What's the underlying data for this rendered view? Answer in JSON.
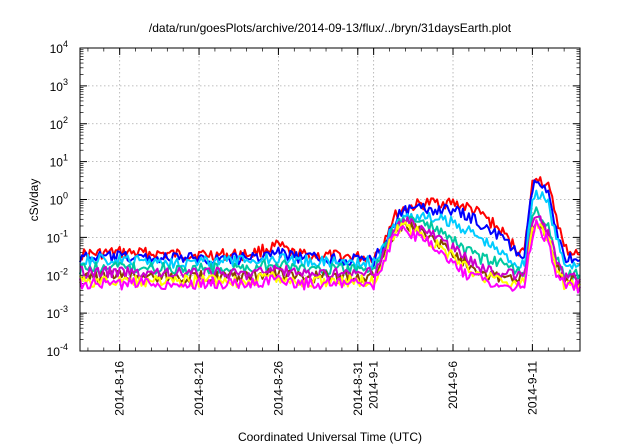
{
  "chart_data": {
    "type": "line",
    "title": "/data/run/goesPlots/archive/2014-09-13/flux/../bryn/31daysEarth.plot",
    "xlabel": "Coordinated Universal Time (UTC)",
    "ylabel": "cSv/day",
    "yscale": "log",
    "ylim": [
      0.0001,
      10000
    ],
    "xlim": [
      "2014-08-13T12:00",
      "2014-09-14T00:00"
    ],
    "grid": true,
    "y_ticks": [
      {
        "value": 0.0001,
        "base": "10",
        "exp": "-4"
      },
      {
        "value": 0.001,
        "base": "10",
        "exp": "-3"
      },
      {
        "value": 0.01,
        "base": "10",
        "exp": "-2"
      },
      {
        "value": 0.1,
        "base": "10",
        "exp": "-1"
      },
      {
        "value": 1,
        "base": "10",
        "exp": "0"
      },
      {
        "value": 10,
        "base": "10",
        "exp": "1"
      },
      {
        "value": 100,
        "base": "10",
        "exp": "2"
      },
      {
        "value": 1000,
        "base": "10",
        "exp": "3"
      },
      {
        "value": 10000,
        "base": "10",
        "exp": "4"
      }
    ],
    "x_ticks": [
      {
        "date": "2014-08-16",
        "label": "2014-8-16"
      },
      {
        "date": "2014-08-21",
        "label": "2014-8-21"
      },
      {
        "date": "2014-08-26",
        "label": "2014-8-26"
      },
      {
        "date": "2014-08-31",
        "label": "2014-8-31"
      },
      {
        "date": "2014-09-01",
        "label": "2014-9-1"
      },
      {
        "date": "2014-09-06",
        "label": "2014-9-6"
      },
      {
        "date": "2014-09-11",
        "label": "2014-9-11"
      }
    ],
    "series": [
      {
        "color": "#ff0000",
        "values": [
          [
            "2014-08-13T12:00",
            0.035
          ],
          [
            "2014-08-16T00:00",
            0.04
          ],
          [
            "2014-08-20T00:00",
            0.035
          ],
          [
            "2014-08-24T00:00",
            0.035
          ],
          [
            "2014-08-26T00:00",
            0.06
          ],
          [
            "2014-08-27T00:00",
            0.035
          ],
          [
            "2014-08-31T00:00",
            0.03
          ],
          [
            "2014-09-01T00:00",
            0.03
          ],
          [
            "2014-09-01T12:00",
            0.06
          ],
          [
            "2014-09-02T00:00",
            0.2
          ],
          [
            "2014-09-02T12:00",
            0.45
          ],
          [
            "2014-09-03T00:00",
            0.6
          ],
          [
            "2014-09-04T00:00",
            0.75
          ],
          [
            "2014-09-05T00:00",
            0.85
          ],
          [
            "2014-09-06T00:00",
            0.8
          ],
          [
            "2014-09-07T00:00",
            0.6
          ],
          [
            "2014-09-08T00:00",
            0.35
          ],
          [
            "2014-09-09T00:00",
            0.15
          ],
          [
            "2014-09-10T00:00",
            0.05
          ],
          [
            "2014-09-10T12:00",
            0.04
          ],
          [
            "2014-09-11T00:00",
            2.5
          ],
          [
            "2014-09-11T06:00",
            4.5
          ],
          [
            "2014-09-12T00:00",
            2.0
          ],
          [
            "2014-09-12T12:00",
            0.4
          ],
          [
            "2014-09-13T00:00",
            0.05
          ],
          [
            "2014-09-14T00:00",
            0.035
          ]
        ]
      },
      {
        "color": "#0000ff",
        "values": [
          [
            "2014-08-13T12:00",
            0.03
          ],
          [
            "2014-08-16T00:00",
            0.03
          ],
          [
            "2014-08-20T00:00",
            0.028
          ],
          [
            "2014-08-24T00:00",
            0.028
          ],
          [
            "2014-08-26T00:00",
            0.04
          ],
          [
            "2014-08-27T00:00",
            0.03
          ],
          [
            "2014-08-31T00:00",
            0.025
          ],
          [
            "2014-09-01T00:00",
            0.025
          ],
          [
            "2014-09-01T12:00",
            0.05
          ],
          [
            "2014-09-02T00:00",
            0.15
          ],
          [
            "2014-09-02T12:00",
            0.35
          ],
          [
            "2014-09-03T00:00",
            0.5
          ],
          [
            "2014-09-04T00:00",
            0.55
          ],
          [
            "2014-09-05T00:00",
            0.55
          ],
          [
            "2014-09-06T00:00",
            0.5
          ],
          [
            "2014-09-07T00:00",
            0.35
          ],
          [
            "2014-09-08T00:00",
            0.2
          ],
          [
            "2014-09-09T00:00",
            0.1
          ],
          [
            "2014-09-10T00:00",
            0.04
          ],
          [
            "2014-09-10T12:00",
            0.03
          ],
          [
            "2014-09-11T00:00",
            2.0
          ],
          [
            "2014-09-11T06:00",
            3.0
          ],
          [
            "2014-09-12T00:00",
            1.3
          ],
          [
            "2014-09-12T12:00",
            0.2
          ],
          [
            "2014-09-13T00:00",
            0.03
          ],
          [
            "2014-09-14T00:00",
            0.025
          ]
        ]
      },
      {
        "color": "#00ccff",
        "values": [
          [
            "2014-08-13T12:00",
            0.025
          ],
          [
            "2014-08-16T00:00",
            0.025
          ],
          [
            "2014-08-20T00:00",
            0.022
          ],
          [
            "2014-08-24T00:00",
            0.024
          ],
          [
            "2014-08-26T00:00",
            0.03
          ],
          [
            "2014-08-27T00:00",
            0.024
          ],
          [
            "2014-08-31T00:00",
            0.022
          ],
          [
            "2014-09-01T00:00",
            0.022
          ],
          [
            "2014-09-01T12:00",
            0.04
          ],
          [
            "2014-09-02T00:00",
            0.12
          ],
          [
            "2014-09-02T12:00",
            0.25
          ],
          [
            "2014-09-03T00:00",
            0.35
          ],
          [
            "2014-09-04T00:00",
            0.35
          ],
          [
            "2014-09-05T00:00",
            0.3
          ],
          [
            "2014-09-06T00:00",
            0.25
          ],
          [
            "2014-09-07T00:00",
            0.15
          ],
          [
            "2014-09-08T00:00",
            0.08
          ],
          [
            "2014-09-09T00:00",
            0.04
          ],
          [
            "2014-09-10T00:00",
            0.02
          ],
          [
            "2014-09-10T12:00",
            0.02
          ],
          [
            "2014-09-11T00:00",
            1.0
          ],
          [
            "2014-09-11T06:00",
            1.5
          ],
          [
            "2014-09-12T00:00",
            0.8
          ],
          [
            "2014-09-12T12:00",
            0.1
          ],
          [
            "2014-09-13T00:00",
            0.02
          ],
          [
            "2014-09-14T00:00",
            0.02
          ]
        ]
      },
      {
        "color": "#00c8a0",
        "values": [
          [
            "2014-08-13T12:00",
            0.015
          ],
          [
            "2014-08-16T00:00",
            0.016
          ],
          [
            "2014-08-20T00:00",
            0.015
          ],
          [
            "2014-08-24T00:00",
            0.015
          ],
          [
            "2014-08-26T00:00",
            0.02
          ],
          [
            "2014-08-27T00:00",
            0.015
          ],
          [
            "2014-08-31T00:00",
            0.014
          ],
          [
            "2014-09-01T00:00",
            0.014
          ],
          [
            "2014-09-01T12:00",
            0.03
          ],
          [
            "2014-09-02T00:00",
            0.1
          ],
          [
            "2014-09-02T12:00",
            0.22
          ],
          [
            "2014-09-03T00:00",
            0.3
          ],
          [
            "2014-09-04T00:00",
            0.25
          ],
          [
            "2014-09-05T00:00",
            0.15
          ],
          [
            "2014-09-06T00:00",
            0.08
          ],
          [
            "2014-09-07T00:00",
            0.04
          ],
          [
            "2014-09-08T00:00",
            0.025
          ],
          [
            "2014-09-09T00:00",
            0.02
          ],
          [
            "2014-09-10T00:00",
            0.015
          ],
          [
            "2014-09-10T12:00",
            0.012
          ],
          [
            "2014-09-11T00:00",
            0.3
          ],
          [
            "2014-09-11T06:00",
            0.45
          ],
          [
            "2014-09-12T00:00",
            0.2
          ],
          [
            "2014-09-12T12:00",
            0.03
          ],
          [
            "2014-09-13T00:00",
            0.01
          ],
          [
            "2014-09-14T00:00",
            0.01
          ]
        ]
      },
      {
        "color": "#884400",
        "values": [
          [
            "2014-08-13T12:00",
            0.009
          ],
          [
            "2014-08-16T00:00",
            0.01
          ],
          [
            "2014-08-20T00:00",
            0.009
          ],
          [
            "2014-08-24T00:00",
            0.009
          ],
          [
            "2014-08-26T00:00",
            0.012
          ],
          [
            "2014-08-27T00:00",
            0.009
          ],
          [
            "2014-08-31T00:00",
            0.009
          ],
          [
            "2014-09-01T00:00",
            0.009
          ],
          [
            "2014-09-01T12:00",
            0.025
          ],
          [
            "2014-09-02T00:00",
            0.08
          ],
          [
            "2014-09-02T12:00",
            0.18
          ],
          [
            "2014-09-03T00:00",
            0.22
          ],
          [
            "2014-09-04T00:00",
            0.15
          ],
          [
            "2014-09-05T00:00",
            0.08
          ],
          [
            "2014-09-06T00:00",
            0.04
          ],
          [
            "2014-09-07T00:00",
            0.02
          ],
          [
            "2014-09-08T00:00",
            0.012
          ],
          [
            "2014-09-09T00:00",
            0.009
          ],
          [
            "2014-09-10T00:00",
            0.008
          ],
          [
            "2014-09-10T12:00",
            0.008
          ],
          [
            "2014-09-11T00:00",
            0.2
          ],
          [
            "2014-09-11T06:00",
            0.3
          ],
          [
            "2014-09-12T00:00",
            0.12
          ],
          [
            "2014-09-12T12:00",
            0.02
          ],
          [
            "2014-09-13T00:00",
            0.007
          ],
          [
            "2014-09-14T00:00",
            0.007
          ]
        ]
      },
      {
        "color": "#cc00cc",
        "values": [
          [
            "2014-08-13T12:00",
            0.012
          ],
          [
            "2014-08-16T00:00",
            0.012
          ],
          [
            "2014-08-20T00:00",
            0.011
          ],
          [
            "2014-08-24T00:00",
            0.011
          ],
          [
            "2014-08-26T00:00",
            0.015
          ],
          [
            "2014-08-27T00:00",
            0.011
          ],
          [
            "2014-08-31T00:00",
            0.011
          ],
          [
            "2014-09-01T00:00",
            0.011
          ],
          [
            "2014-09-01T12:00",
            0.028
          ],
          [
            "2014-09-02T00:00",
            0.09
          ],
          [
            "2014-09-02T12:00",
            0.2
          ],
          [
            "2014-09-03T00:00",
            0.25
          ],
          [
            "2014-09-04T00:00",
            0.18
          ],
          [
            "2014-09-05T00:00",
            0.1
          ],
          [
            "2014-09-06T00:00",
            0.05
          ],
          [
            "2014-09-07T00:00",
            0.025
          ],
          [
            "2014-09-08T00:00",
            0.015
          ],
          [
            "2014-09-09T00:00",
            0.011
          ],
          [
            "2014-09-10T00:00",
            0.01
          ],
          [
            "2014-09-10T12:00",
            0.01
          ],
          [
            "2014-09-11T00:00",
            0.25
          ],
          [
            "2014-09-11T06:00",
            0.35
          ],
          [
            "2014-09-12T00:00",
            0.15
          ],
          [
            "2014-09-12T12:00",
            0.025
          ],
          [
            "2014-09-13T00:00",
            0.008
          ],
          [
            "2014-09-14T00:00",
            0.008
          ]
        ]
      },
      {
        "color": "#ffff00",
        "values": [
          [
            "2014-08-13T12:00",
            0.007
          ],
          [
            "2014-08-16T00:00",
            0.007
          ],
          [
            "2014-08-20T00:00",
            0.007
          ],
          [
            "2014-08-24T00:00",
            0.007
          ],
          [
            "2014-08-26T00:00",
            0.009
          ],
          [
            "2014-08-27T00:00",
            0.007
          ],
          [
            "2014-08-31T00:00",
            0.007
          ],
          [
            "2014-09-01T00:00",
            0.007
          ],
          [
            "2014-09-01T12:00",
            0.02
          ],
          [
            "2014-09-02T00:00",
            0.07
          ],
          [
            "2014-09-02T12:00",
            0.15
          ],
          [
            "2014-09-03T00:00",
            0.18
          ],
          [
            "2014-09-04T00:00",
            0.12
          ],
          [
            "2014-09-05T00:00",
            0.06
          ],
          [
            "2014-09-06T00:00",
            0.03
          ],
          [
            "2014-09-07T00:00",
            0.015
          ],
          [
            "2014-09-08T00:00",
            0.009
          ],
          [
            "2014-09-09T00:00",
            0.007
          ],
          [
            "2014-09-10T00:00",
            0.006
          ],
          [
            "2014-09-10T12:00",
            0.006
          ],
          [
            "2014-09-11T00:00",
            0.15
          ],
          [
            "2014-09-11T06:00",
            0.25
          ],
          [
            "2014-09-12T00:00",
            0.1
          ],
          [
            "2014-09-12T12:00",
            0.015
          ],
          [
            "2014-09-13T00:00",
            0.006
          ],
          [
            "2014-09-14T00:00",
            0.006
          ]
        ]
      },
      {
        "color": "#ff00ff",
        "values": [
          [
            "2014-08-13T12:00",
            0.006
          ],
          [
            "2014-08-16T00:00",
            0.006
          ],
          [
            "2014-08-20T00:00",
            0.006
          ],
          [
            "2014-08-24T00:00",
            0.006
          ],
          [
            "2014-08-26T00:00",
            0.008
          ],
          [
            "2014-08-27T00:00",
            0.006
          ],
          [
            "2014-08-31T00:00",
            0.006
          ],
          [
            "2014-09-01T00:00",
            0.006
          ],
          [
            "2014-09-01T12:00",
            0.018
          ],
          [
            "2014-09-02T00:00",
            0.06
          ],
          [
            "2014-09-02T12:00",
            0.13
          ],
          [
            "2014-09-03T00:00",
            0.15
          ],
          [
            "2014-09-04T00:00",
            0.1
          ],
          [
            "2014-09-05T00:00",
            0.05
          ],
          [
            "2014-09-06T00:00",
            0.02
          ],
          [
            "2014-09-07T00:00",
            0.01
          ],
          [
            "2014-09-08T00:00",
            0.007
          ],
          [
            "2014-09-09T00:00",
            0.006
          ],
          [
            "2014-09-10T00:00",
            0.005
          ],
          [
            "2014-09-10T12:00",
            0.005
          ],
          [
            "2014-09-11T00:00",
            0.12
          ],
          [
            "2014-09-11T06:00",
            0.2
          ],
          [
            "2014-09-12T00:00",
            0.08
          ],
          [
            "2014-09-12T12:00",
            0.012
          ],
          [
            "2014-09-13T00:00",
            0.005
          ],
          [
            "2014-09-14T00:00",
            0.005
          ]
        ]
      }
    ]
  }
}
